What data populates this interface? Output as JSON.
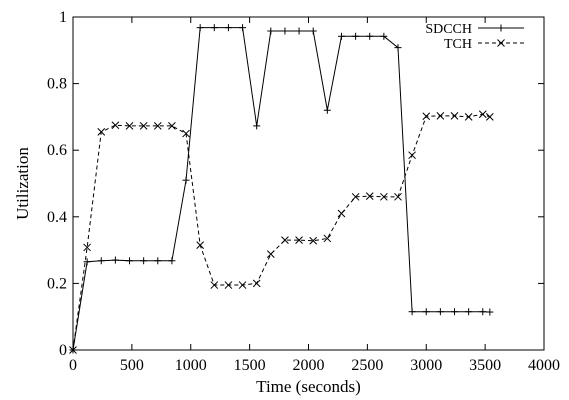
{
  "chart_data": {
    "type": "line",
    "xlabel": "Time (seconds)",
    "ylabel": "Utilization",
    "xlim": [
      0,
      4000
    ],
    "ylim": [
      0,
      1
    ],
    "xticks": [
      0,
      500,
      1000,
      1500,
      2000,
      2500,
      3000,
      3500,
      4000
    ],
    "yticks": [
      0,
      0.2,
      0.4,
      0.6,
      0.8,
      1
    ],
    "grid": false,
    "legend": "top-right",
    "series": [
      {
        "name": "SDCCH",
        "style": "solid",
        "marker": "plus",
        "color": "#000000",
        "x": [
          0,
          120,
          240,
          360,
          480,
          600,
          720,
          840,
          960,
          1080,
          1200,
          1320,
          1440,
          1560,
          1680,
          1800,
          1920,
          2040,
          2160,
          2280,
          2400,
          2520,
          2640,
          2760,
          2880,
          3000,
          3120,
          3240,
          3360,
          3480,
          3540
        ],
        "y": [
          0,
          0.265,
          0.268,
          0.27,
          0.268,
          0.268,
          0.268,
          0.268,
          0.51,
          0.968,
          0.968,
          0.968,
          0.968,
          0.673,
          0.958,
          0.958,
          0.958,
          0.958,
          0.72,
          0.942,
          0.942,
          0.942,
          0.942,
          0.908,
          0.115,
          0.115,
          0.115,
          0.115,
          0.115,
          0.115,
          0.114
        ]
      },
      {
        "name": "TCH",
        "style": "dashed",
        "marker": "cross",
        "color": "#000000",
        "x": [
          0,
          120,
          240,
          360,
          480,
          600,
          720,
          840,
          960,
          1080,
          1200,
          1320,
          1440,
          1560,
          1680,
          1800,
          1920,
          2040,
          2160,
          2280,
          2400,
          2520,
          2640,
          2760,
          2880,
          3000,
          3120,
          3240,
          3360,
          3480,
          3540
        ],
        "y": [
          0,
          0.308,
          0.655,
          0.675,
          0.673,
          0.673,
          0.673,
          0.673,
          0.65,
          0.315,
          0.195,
          0.195,
          0.195,
          0.2,
          0.288,
          0.33,
          0.33,
          0.328,
          0.335,
          0.41,
          0.46,
          0.462,
          0.46,
          0.46,
          0.585,
          0.702,
          0.703,
          0.703,
          0.7,
          0.708,
          0.7
        ]
      }
    ]
  }
}
